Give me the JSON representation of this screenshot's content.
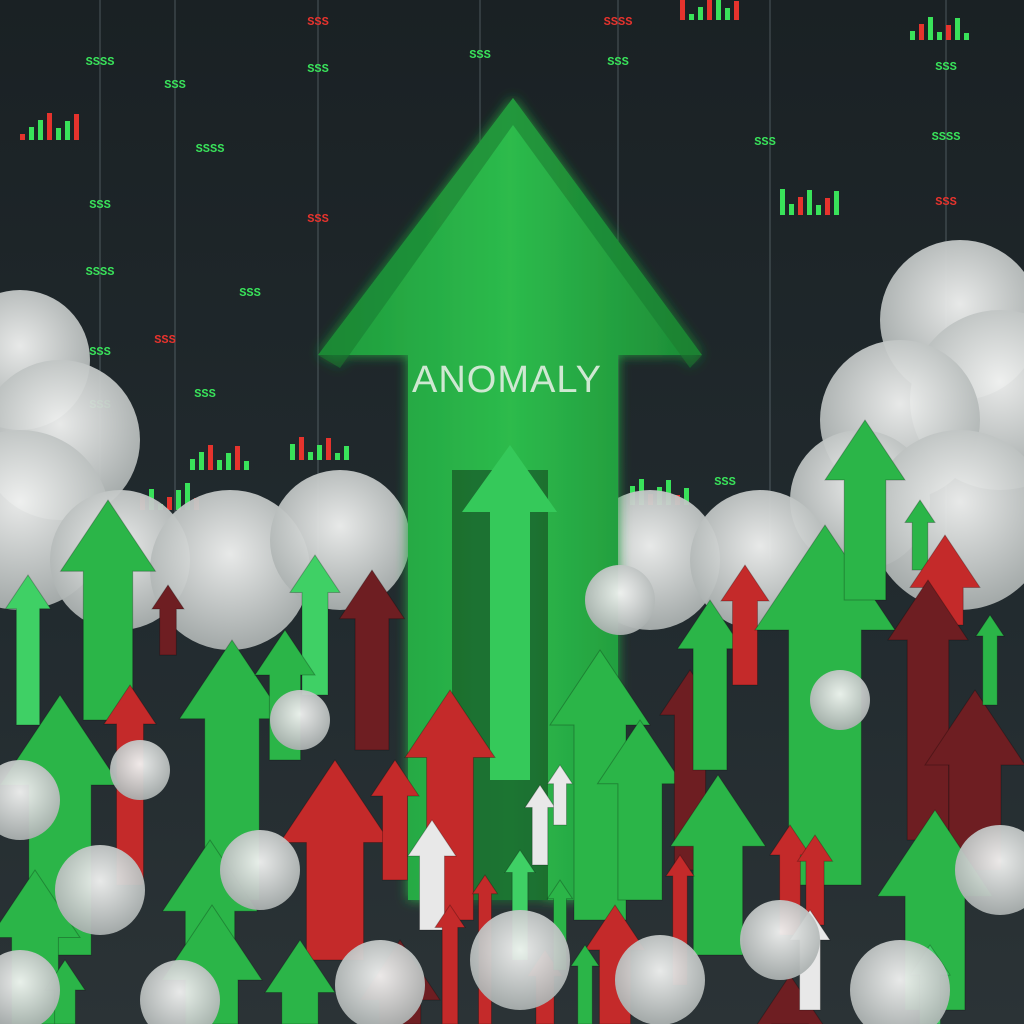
{
  "scene": {
    "main_label": "ANOMALY",
    "colors": {
      "sky": "#1d2428",
      "arrow_green": "#2bb548",
      "arrow_green_light": "#3fd065",
      "arrow_green_dark": "#1d8a36",
      "arrow_red": "#c42a2a",
      "arrow_red_dark": "#6e1e22",
      "arrow_white": "#e8e8e8",
      "cloud": "#d9dcdb",
      "ticker_green": "#39e25a",
      "ticker_red": "#e6332d"
    }
  },
  "ticker_labels": [
    "SSSS",
    "SSS",
    "SSS",
    "SSS",
    "SSSS",
    "SSS",
    "SSS",
    "SSSS",
    "SSS",
    "SSS",
    "SSS",
    "SSS",
    "SSS",
    "SSS",
    "SSSS",
    "SSS",
    "SSS",
    "SSSS",
    "SSS",
    "SSS",
    "SSS"
  ]
}
